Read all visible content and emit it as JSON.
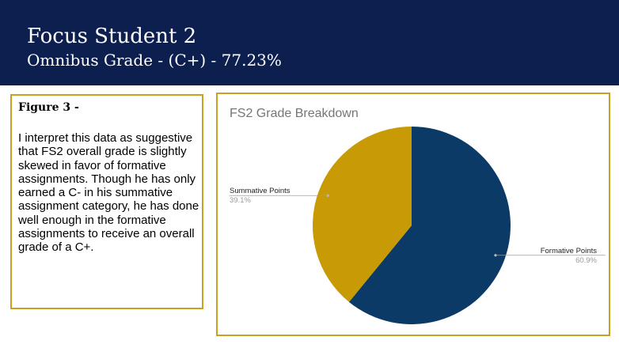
{
  "header": {
    "title": "Focus Student 2",
    "subtitle": "Omnibus Grade - (C+) - 77.23%"
  },
  "figure": {
    "heading": "Figure 3 -",
    "body": "I interpret this data as suggestive that FS2 overall grade is slightly skewed in favor of formative assignments. Though he has only earned a C- in his summative assignment category, he has done well enough in the formative assignments to receive an overall grade of a C+."
  },
  "colors": {
    "header_bg": "#0c1f4e",
    "accent_border": "#c8a11e",
    "formative": "#0b3a66",
    "summative": "#c79a06"
  },
  "chart_data": {
    "type": "pie",
    "title": "FS2 Grade Breakdown",
    "slices": [
      {
        "label": "Formative Points",
        "value": 60.9,
        "display": "60.9%",
        "color": "#0b3a66"
      },
      {
        "label": "Summative Points",
        "value": 39.1,
        "display": "39.1%",
        "color": "#c79a06"
      }
    ],
    "legend": "none",
    "label_placement": "outside-with-leader-lines"
  }
}
